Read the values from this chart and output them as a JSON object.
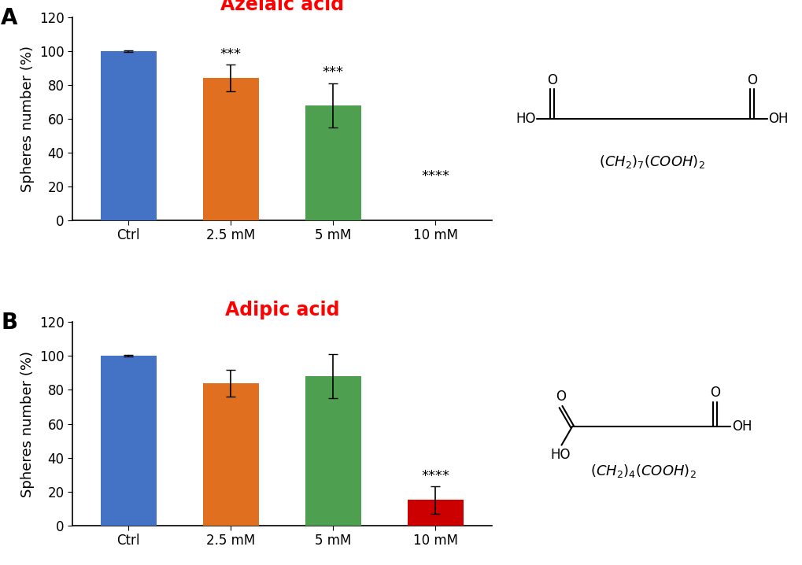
{
  "panel_A": {
    "title": "Azelaic acid",
    "categories": [
      "Ctrl",
      "2.5 mM",
      "5 mM",
      "10 mM"
    ],
    "values": [
      100,
      84,
      68,
      0
    ],
    "errors": [
      0.5,
      8,
      13,
      0
    ],
    "colors": [
      "#4472C4",
      "#E07020",
      "#4EA050",
      "#4472C4"
    ],
    "bar_visible": [
      true,
      true,
      true,
      false
    ],
    "sig_labels": [
      "",
      "***",
      "***",
      "****"
    ],
    "ylabel": "Spheres number (%)",
    "ylim": [
      0,
      120
    ],
    "yticks": [
      0,
      20,
      40,
      60,
      80,
      100,
      120
    ],
    "panel_label": "A"
  },
  "panel_B": {
    "title": "Adipic acid",
    "categories": [
      "Ctrl",
      "2.5 mM",
      "5 mM",
      "10 mM"
    ],
    "values": [
      100,
      84,
      88,
      15
    ],
    "errors": [
      0.5,
      8,
      13,
      8
    ],
    "colors": [
      "#4472C4",
      "#E07020",
      "#4EA050",
      "#CC0000"
    ],
    "bar_visible": [
      true,
      true,
      true,
      true
    ],
    "sig_labels": [
      "",
      "",
      "",
      "****"
    ],
    "ylabel": "Spheres number (%)",
    "ylim": [
      0,
      120
    ],
    "yticks": [
      0,
      20,
      40,
      60,
      80,
      100,
      120
    ],
    "panel_label": "B"
  },
  "title_color": "#FF0000",
  "title_fontsize": 17,
  "panel_label_fontsize": 20,
  "ylabel_fontsize": 13,
  "tick_fontsize": 12,
  "sig_fontsize": 13,
  "bar_width": 0.55,
  "background_color": "#FFFFFF"
}
